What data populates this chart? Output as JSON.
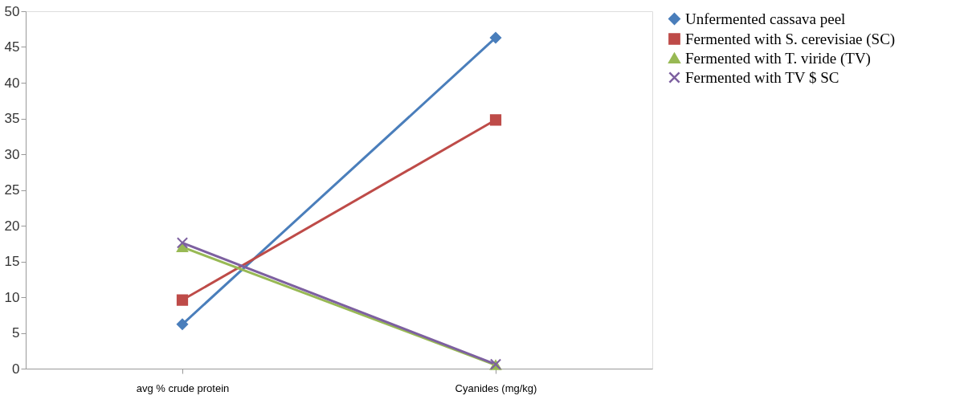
{
  "chart_data": {
    "type": "line",
    "categories": [
      "avg % crude protein",
      "Cyanides (mg/kg)"
    ],
    "series": [
      {
        "name": "Unfermented cassava peel",
        "color": "#4a7ebb",
        "marker": "diamond",
        "values": [
          6.2,
          46.3
        ]
      },
      {
        "name": "Fermented with S. cerevisiae (SC)",
        "color": "#be4b48",
        "marker": "square",
        "values": [
          9.6,
          34.8
        ]
      },
      {
        "name": "Fermented with T. viride (TV)",
        "color": "#98b954",
        "marker": "triangle",
        "values": [
          17.0,
          0.5
        ]
      },
      {
        "name": "Fermented with TV $ SC",
        "color": "#7d60a0",
        "marker": "cross",
        "values": [
          17.6,
          0.6
        ]
      }
    ],
    "ylim": [
      0,
      50
    ],
    "yticks": [
      0,
      5,
      10,
      15,
      20,
      25,
      30,
      35,
      40,
      45,
      50
    ],
    "grid": false,
    "legend": "right"
  }
}
